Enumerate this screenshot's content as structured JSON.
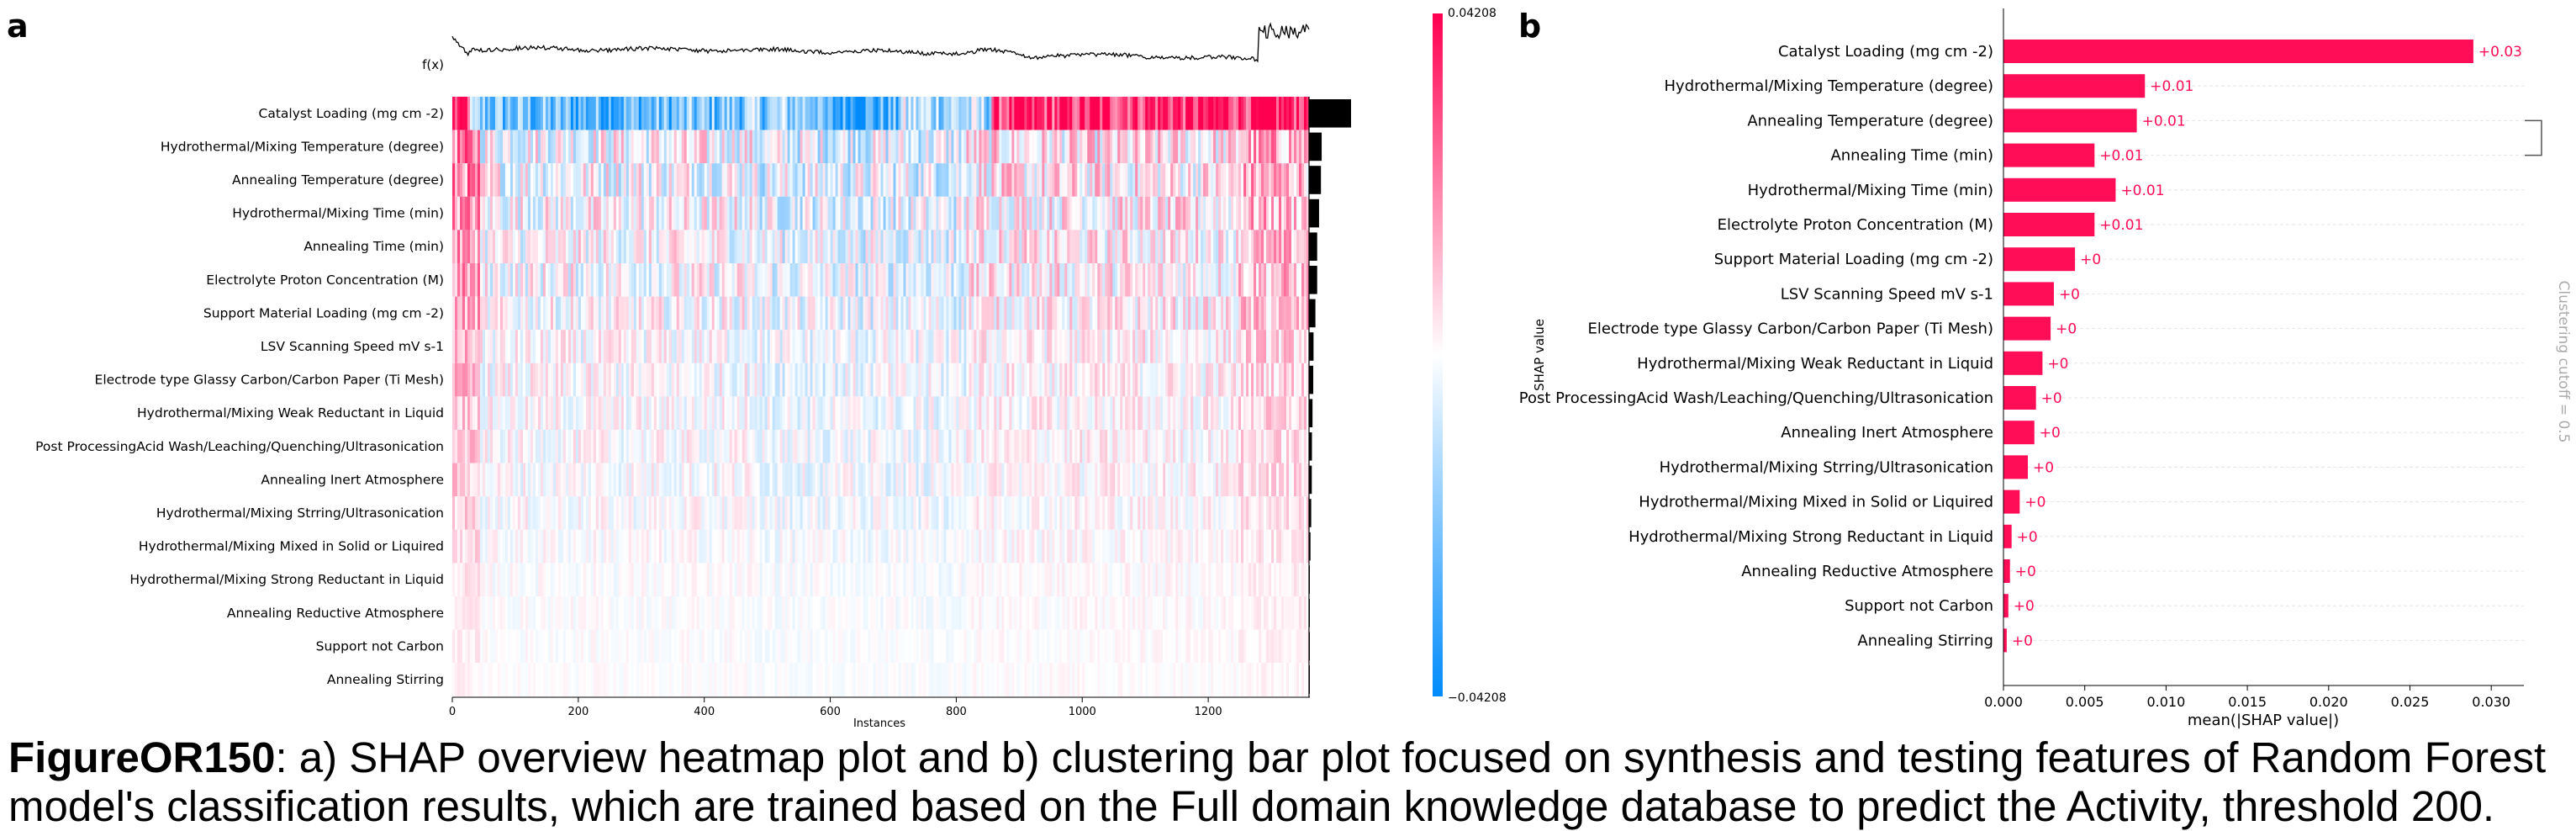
{
  "panel_a": {
    "letter": "a",
    "fx_label": "f(x)",
    "xlabel": "Instances",
    "colorbar_label": "SHAP value",
    "colorbar_max": "0.04208",
    "colorbar_min": "−0.04208",
    "colors": {
      "positive": "#ff0051",
      "negative": "#008bfb",
      "importance_bars": "#000000"
    }
  },
  "panel_b": {
    "letter": "b",
    "cutoff_label": "Clustering cutoff = 0.5",
    "bar_color": "#ff0d57",
    "label_color": "#ff0d57"
  },
  "caption": {
    "figure_id": "FigureOR150",
    "text": ": a) SHAP overview heatmap plot and b) clustering bar plot focused on synthesis and testing features of Random Forest model's classification results, which are trained based on the Full domain knowledge database to predict the Activity, threshold 200."
  },
  "chart_data": [
    {
      "type": "heatmap",
      "title": "",
      "xlabel": "Instances",
      "ylabel": "",
      "x_range": [
        0,
        1360
      ],
      "x_ticks": [
        0,
        200,
        400,
        600,
        800,
        1000,
        1200
      ],
      "color_range": [
        -0.04208,
        0.04208
      ],
      "features": [
        "Catalyst Loading (mg cm -2)",
        "Hydrothermal/Mixing Temperature (degree)",
        "Annealing Temperature (degree)",
        "Hydrothermal/Mixing Time (min)",
        "Annealing Time (min)",
        "Electrolyte Proton Concentration (M)",
        "Support Material Loading (mg cm -2)",
        "LSV Scanning Speed mV s-1",
        "Electrode type Glassy Carbon/Carbon Paper (Ti Mesh)",
        "Hydrothermal/Mixing Weak Reductant in Liquid",
        "Post ProcessingAcid Wash/Leaching/Quenching/Ultrasonication",
        "Annealing Inert Atmosphere",
        "Hydrothermal/Mixing Strring/Ultrasonication",
        "Hydrothermal/Mixing Mixed in Solid or Liquired",
        "Hydrothermal/Mixing Strong Reductant in Liquid",
        "Annealing Reductive Atmosphere",
        "Support not Carbon",
        "Annealing Stirring"
      ],
      "feature_importance": [
        0.0289,
        0.0087,
        0.0082,
        0.0069,
        0.0056,
        0.0056,
        0.0044,
        0.0031,
        0.0029,
        0.0024,
        0.002,
        0.0019,
        0.0015,
        0.001,
        0.0005,
        0.0004,
        0.0003,
        0.0002
      ]
    },
    {
      "type": "bar",
      "title": "",
      "xlabel": "mean(|SHAP value|)",
      "ylabel": "",
      "xlim": [
        0,
        0.0318
      ],
      "x_ticks": [
        "0.000",
        "0.005",
        "0.010",
        "0.015",
        "0.020",
        "0.025",
        "0.030"
      ],
      "categories": [
        "Catalyst Loading (mg cm -2)",
        "Hydrothermal/Mixing Temperature (degree)",
        "Annealing Temperature (degree)",
        "Annealing Time (min)",
        "Hydrothermal/Mixing Time (min)",
        "Electrolyte Proton Concentration (M)",
        "Support Material Loading (mg cm -2)",
        "LSV Scanning Speed mV s-1",
        "Electrode type Glassy Carbon/Carbon Paper (Ti Mesh)",
        "Hydrothermal/Mixing Weak Reductant in Liquid",
        "Post ProcessingAcid Wash/Leaching/Quenching/Ultrasonication",
        "Annealing Inert Atmosphere",
        "Hydrothermal/Mixing Strring/Ultrasonication",
        "Hydrothermal/Mixing Mixed in Solid or Liquired",
        "Hydrothermal/Mixing Strong Reductant in Liquid",
        "Annealing Reductive Atmosphere",
        "Support not Carbon",
        "Annealing Stirring"
      ],
      "values": [
        0.0289,
        0.0087,
        0.0082,
        0.0056,
        0.0069,
        0.0056,
        0.0044,
        0.0031,
        0.0029,
        0.0024,
        0.002,
        0.0019,
        0.0015,
        0.001,
        0.0005,
        0.0004,
        0.0003,
        0.0002
      ],
      "value_labels": [
        "+0.03",
        "+0.01",
        "+0.01",
        "+0.01",
        "+0.01",
        "+0.01",
        "+0",
        "+0",
        "+0",
        "+0",
        "+0",
        "+0",
        "+0",
        "+0",
        "+0",
        "+0",
        "+0",
        "+0"
      ],
      "cluster_bracket": [
        "Annealing Temperature (degree)",
        "Annealing Time (min)"
      ]
    }
  ]
}
